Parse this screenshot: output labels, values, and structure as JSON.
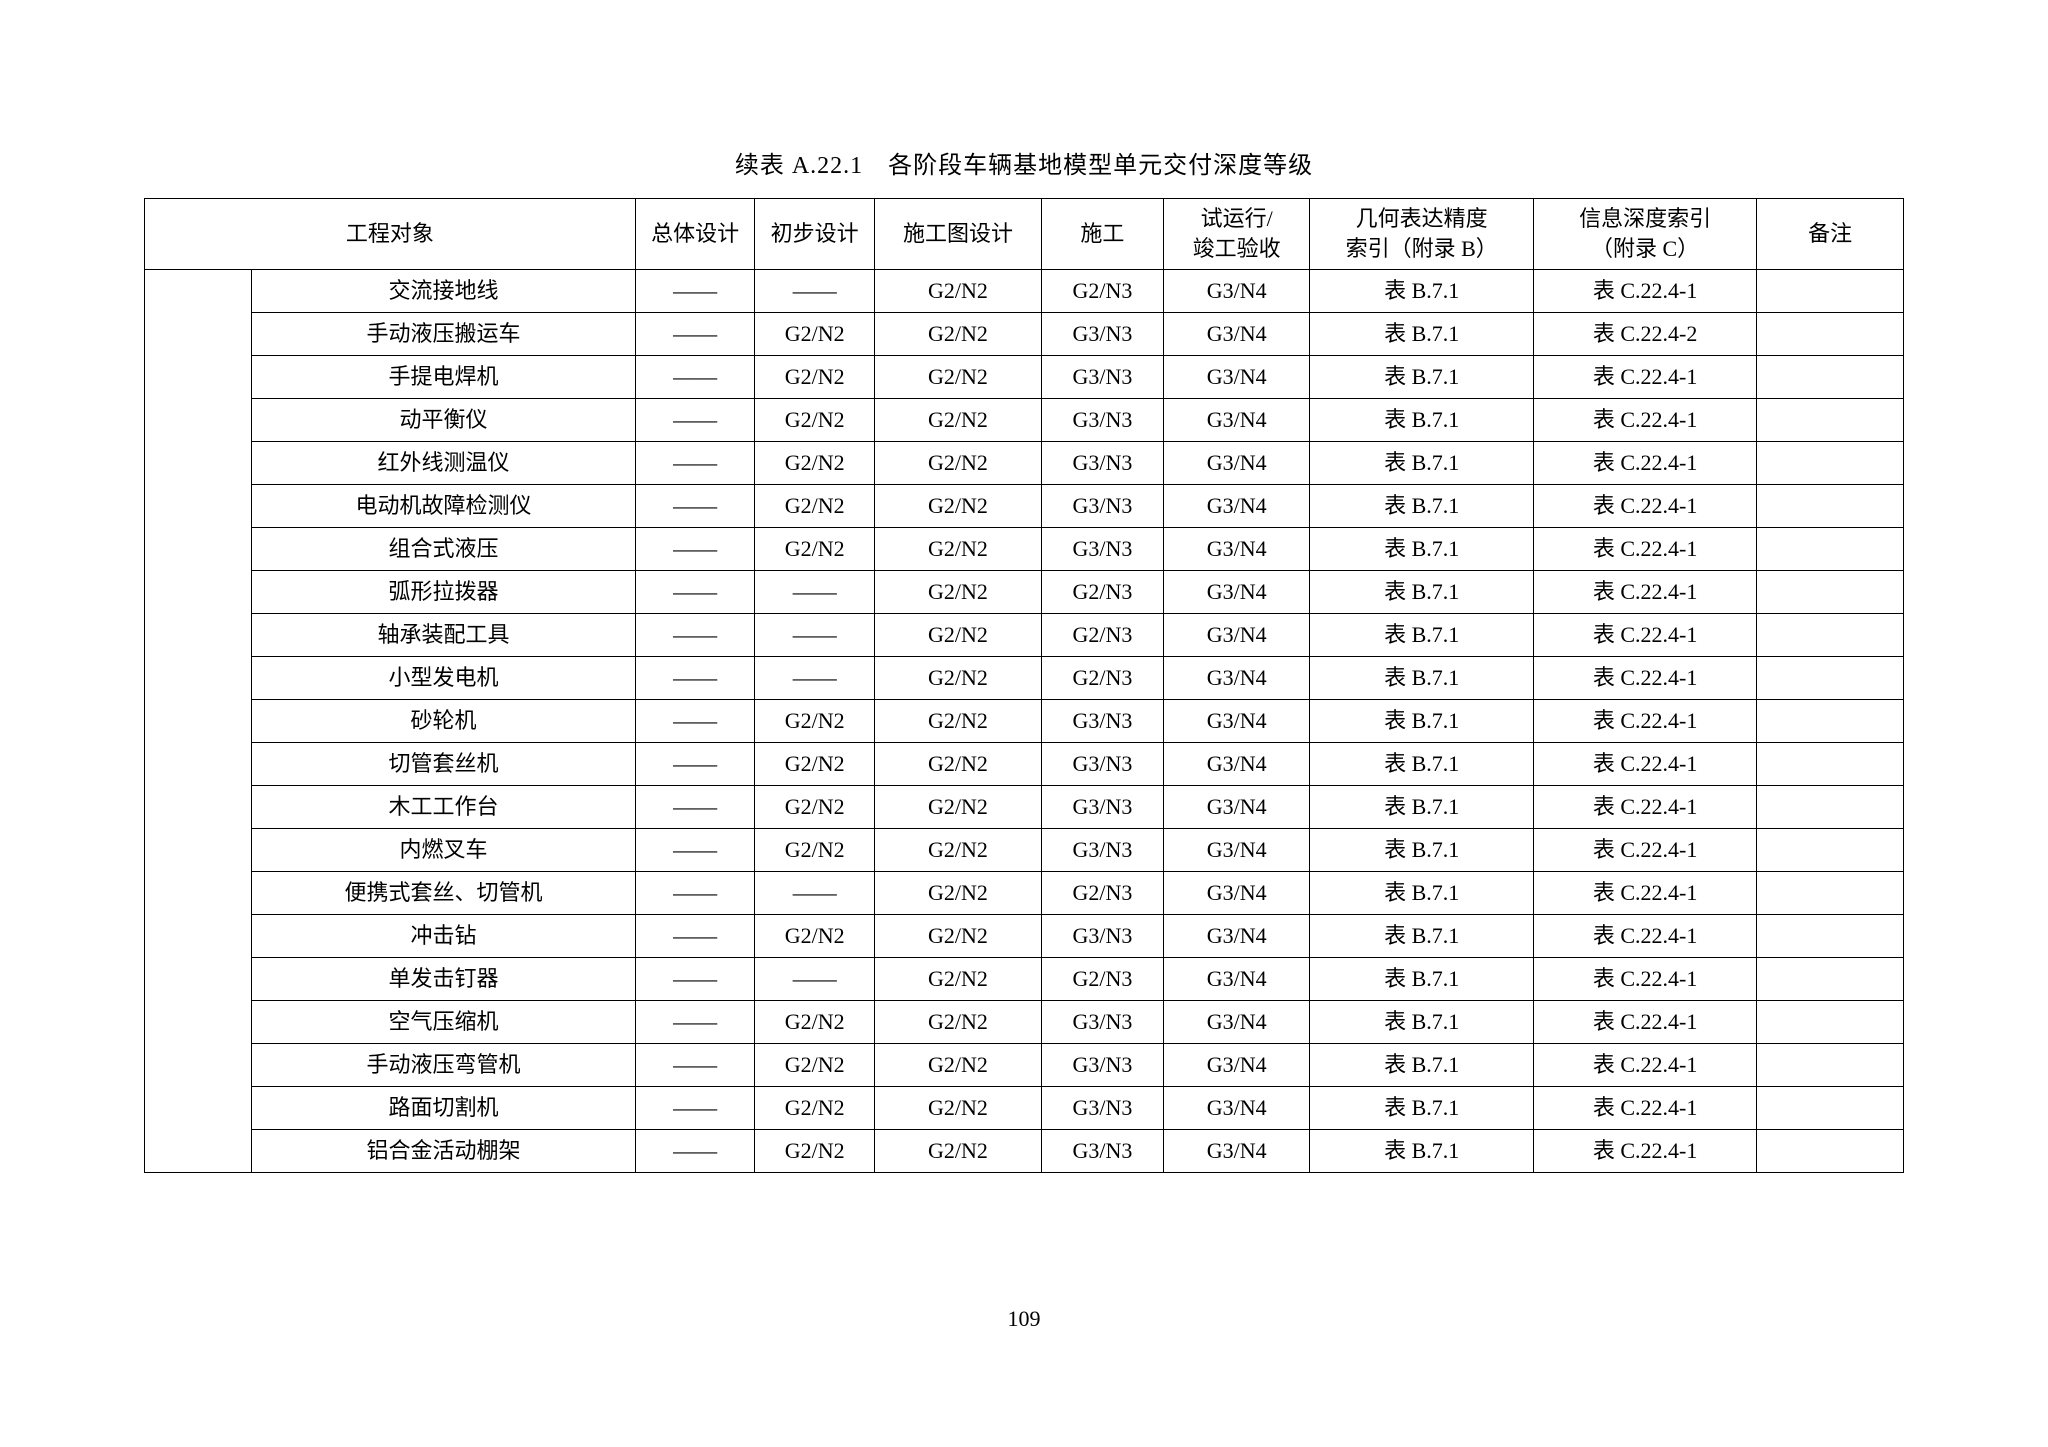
{
  "caption": "续表 A.22.1　各阶段车辆基地模型单元交付深度等级",
  "page_number": "109",
  "dash": "——",
  "columns": {
    "object": "工程对象",
    "overall": "总体设计",
    "prelim": "初步设计",
    "drawing": "施工图设计",
    "constr": "施工",
    "trial_l1": "试运行/",
    "trial_l2": "竣工验收",
    "geom_l1": "几何表达精度",
    "geom_l2": "索引（附录 B）",
    "info_l1": "信息深度索引",
    "info_l2": "（附录 C）",
    "remark": "备注"
  },
  "rows": [
    {
      "name": "交流接地线",
      "overall": "——",
      "prelim": "——",
      "drawing": "G2/N2",
      "constr": "G2/N3",
      "trial": "G3/N4",
      "geom": "表 B.7.1",
      "info": "表 C.22.4-1",
      "remark": ""
    },
    {
      "name": "手动液压搬运车",
      "overall": "——",
      "prelim": "G2/N2",
      "drawing": "G2/N2",
      "constr": "G3/N3",
      "trial": "G3/N4",
      "geom": "表 B.7.1",
      "info": "表 C.22.4-2",
      "remark": ""
    },
    {
      "name": "手提电焊机",
      "overall": "——",
      "prelim": "G2/N2",
      "drawing": "G2/N2",
      "constr": "G3/N3",
      "trial": "G3/N4",
      "geom": "表 B.7.1",
      "info": "表 C.22.4-1",
      "remark": ""
    },
    {
      "name": "动平衡仪",
      "overall": "——",
      "prelim": "G2/N2",
      "drawing": "G2/N2",
      "constr": "G3/N3",
      "trial": "G3/N4",
      "geom": "表 B.7.1",
      "info": "表 C.22.4-1",
      "remark": ""
    },
    {
      "name": "红外线测温仪",
      "overall": "——",
      "prelim": "G2/N2",
      "drawing": "G2/N2",
      "constr": "G3/N3",
      "trial": "G3/N4",
      "geom": "表 B.7.1",
      "info": "表 C.22.4-1",
      "remark": ""
    },
    {
      "name": "电动机故障检测仪",
      "overall": "——",
      "prelim": "G2/N2",
      "drawing": "G2/N2",
      "constr": "G3/N3",
      "trial": "G3/N4",
      "geom": "表 B.7.1",
      "info": "表 C.22.4-1",
      "remark": ""
    },
    {
      "name": "组合式液压",
      "overall": "——",
      "prelim": "G2/N2",
      "drawing": "G2/N2",
      "constr": "G3/N3",
      "trial": "G3/N4",
      "geom": "表 B.7.1",
      "info": "表 C.22.4-1",
      "remark": ""
    },
    {
      "name": "弧形拉拨器",
      "overall": "——",
      "prelim": "——",
      "drawing": "G2/N2",
      "constr": "G2/N3",
      "trial": "G3/N4",
      "geom": "表 B.7.1",
      "info": "表 C.22.4-1",
      "remark": ""
    },
    {
      "name": "轴承装配工具",
      "overall": "——",
      "prelim": "——",
      "drawing": "G2/N2",
      "constr": "G2/N3",
      "trial": "G3/N4",
      "geom": "表 B.7.1",
      "info": "表 C.22.4-1",
      "remark": ""
    },
    {
      "name": "小型发电机",
      "overall": "——",
      "prelim": "——",
      "drawing": "G2/N2",
      "constr": "G2/N3",
      "trial": "G3/N4",
      "geom": "表 B.7.1",
      "info": "表 C.22.4-1",
      "remark": ""
    },
    {
      "name": "砂轮机",
      "overall": "——",
      "prelim": "G2/N2",
      "drawing": "G2/N2",
      "constr": "G3/N3",
      "trial": "G3/N4",
      "geom": "表 B.7.1",
      "info": "表 C.22.4-1",
      "remark": ""
    },
    {
      "name": "切管套丝机",
      "overall": "——",
      "prelim": "G2/N2",
      "drawing": "G2/N2",
      "constr": "G3/N3",
      "trial": "G3/N4",
      "geom": "表 B.7.1",
      "info": "表 C.22.4-1",
      "remark": ""
    },
    {
      "name": "木工工作台",
      "overall": "——",
      "prelim": "G2/N2",
      "drawing": "G2/N2",
      "constr": "G3/N3",
      "trial": "G3/N4",
      "geom": "表 B.7.1",
      "info": "表 C.22.4-1",
      "remark": ""
    },
    {
      "name": "内燃叉车",
      "overall": "——",
      "prelim": "G2/N2",
      "drawing": "G2/N2",
      "constr": "G3/N3",
      "trial": "G3/N4",
      "geom": "表 B.7.1",
      "info": "表 C.22.4-1",
      "remark": ""
    },
    {
      "name": "便携式套丝、切管机",
      "overall": "——",
      "prelim": "——",
      "drawing": "G2/N2",
      "constr": "G2/N3",
      "trial": "G3/N4",
      "geom": "表 B.7.1",
      "info": "表 C.22.4-1",
      "remark": ""
    },
    {
      "name": "冲击钻",
      "overall": "——",
      "prelim": "G2/N2",
      "drawing": "G2/N2",
      "constr": "G3/N3",
      "trial": "G3/N4",
      "geom": "表 B.7.1",
      "info": "表 C.22.4-1",
      "remark": ""
    },
    {
      "name": "单发击钉器",
      "overall": "——",
      "prelim": "——",
      "drawing": "G2/N2",
      "constr": "G2/N3",
      "trial": "G3/N4",
      "geom": "表 B.7.1",
      "info": "表 C.22.4-1",
      "remark": ""
    },
    {
      "name": "空气压缩机",
      "overall": "——",
      "prelim": "G2/N2",
      "drawing": "G2/N2",
      "constr": "G3/N3",
      "trial": "G3/N4",
      "geom": "表 B.7.1",
      "info": "表 C.22.4-1",
      "remark": ""
    },
    {
      "name": "手动液压弯管机",
      "overall": "——",
      "prelim": "G2/N2",
      "drawing": "G2/N2",
      "constr": "G3/N3",
      "trial": "G3/N4",
      "geom": "表 B.7.1",
      "info": "表 C.22.4-1",
      "remark": ""
    },
    {
      "name": "路面切割机",
      "overall": "——",
      "prelim": "G2/N2",
      "drawing": "G2/N2",
      "constr": "G3/N3",
      "trial": "G3/N4",
      "geom": "表 B.7.1",
      "info": "表 C.22.4-1",
      "remark": ""
    },
    {
      "name": "铝合金活动棚架",
      "overall": "——",
      "prelim": "G2/N2",
      "drawing": "G2/N2",
      "constr": "G3/N3",
      "trial": "G3/N4",
      "geom": "表 B.7.1",
      "info": "表 C.22.4-1",
      "remark": ""
    }
  ]
}
